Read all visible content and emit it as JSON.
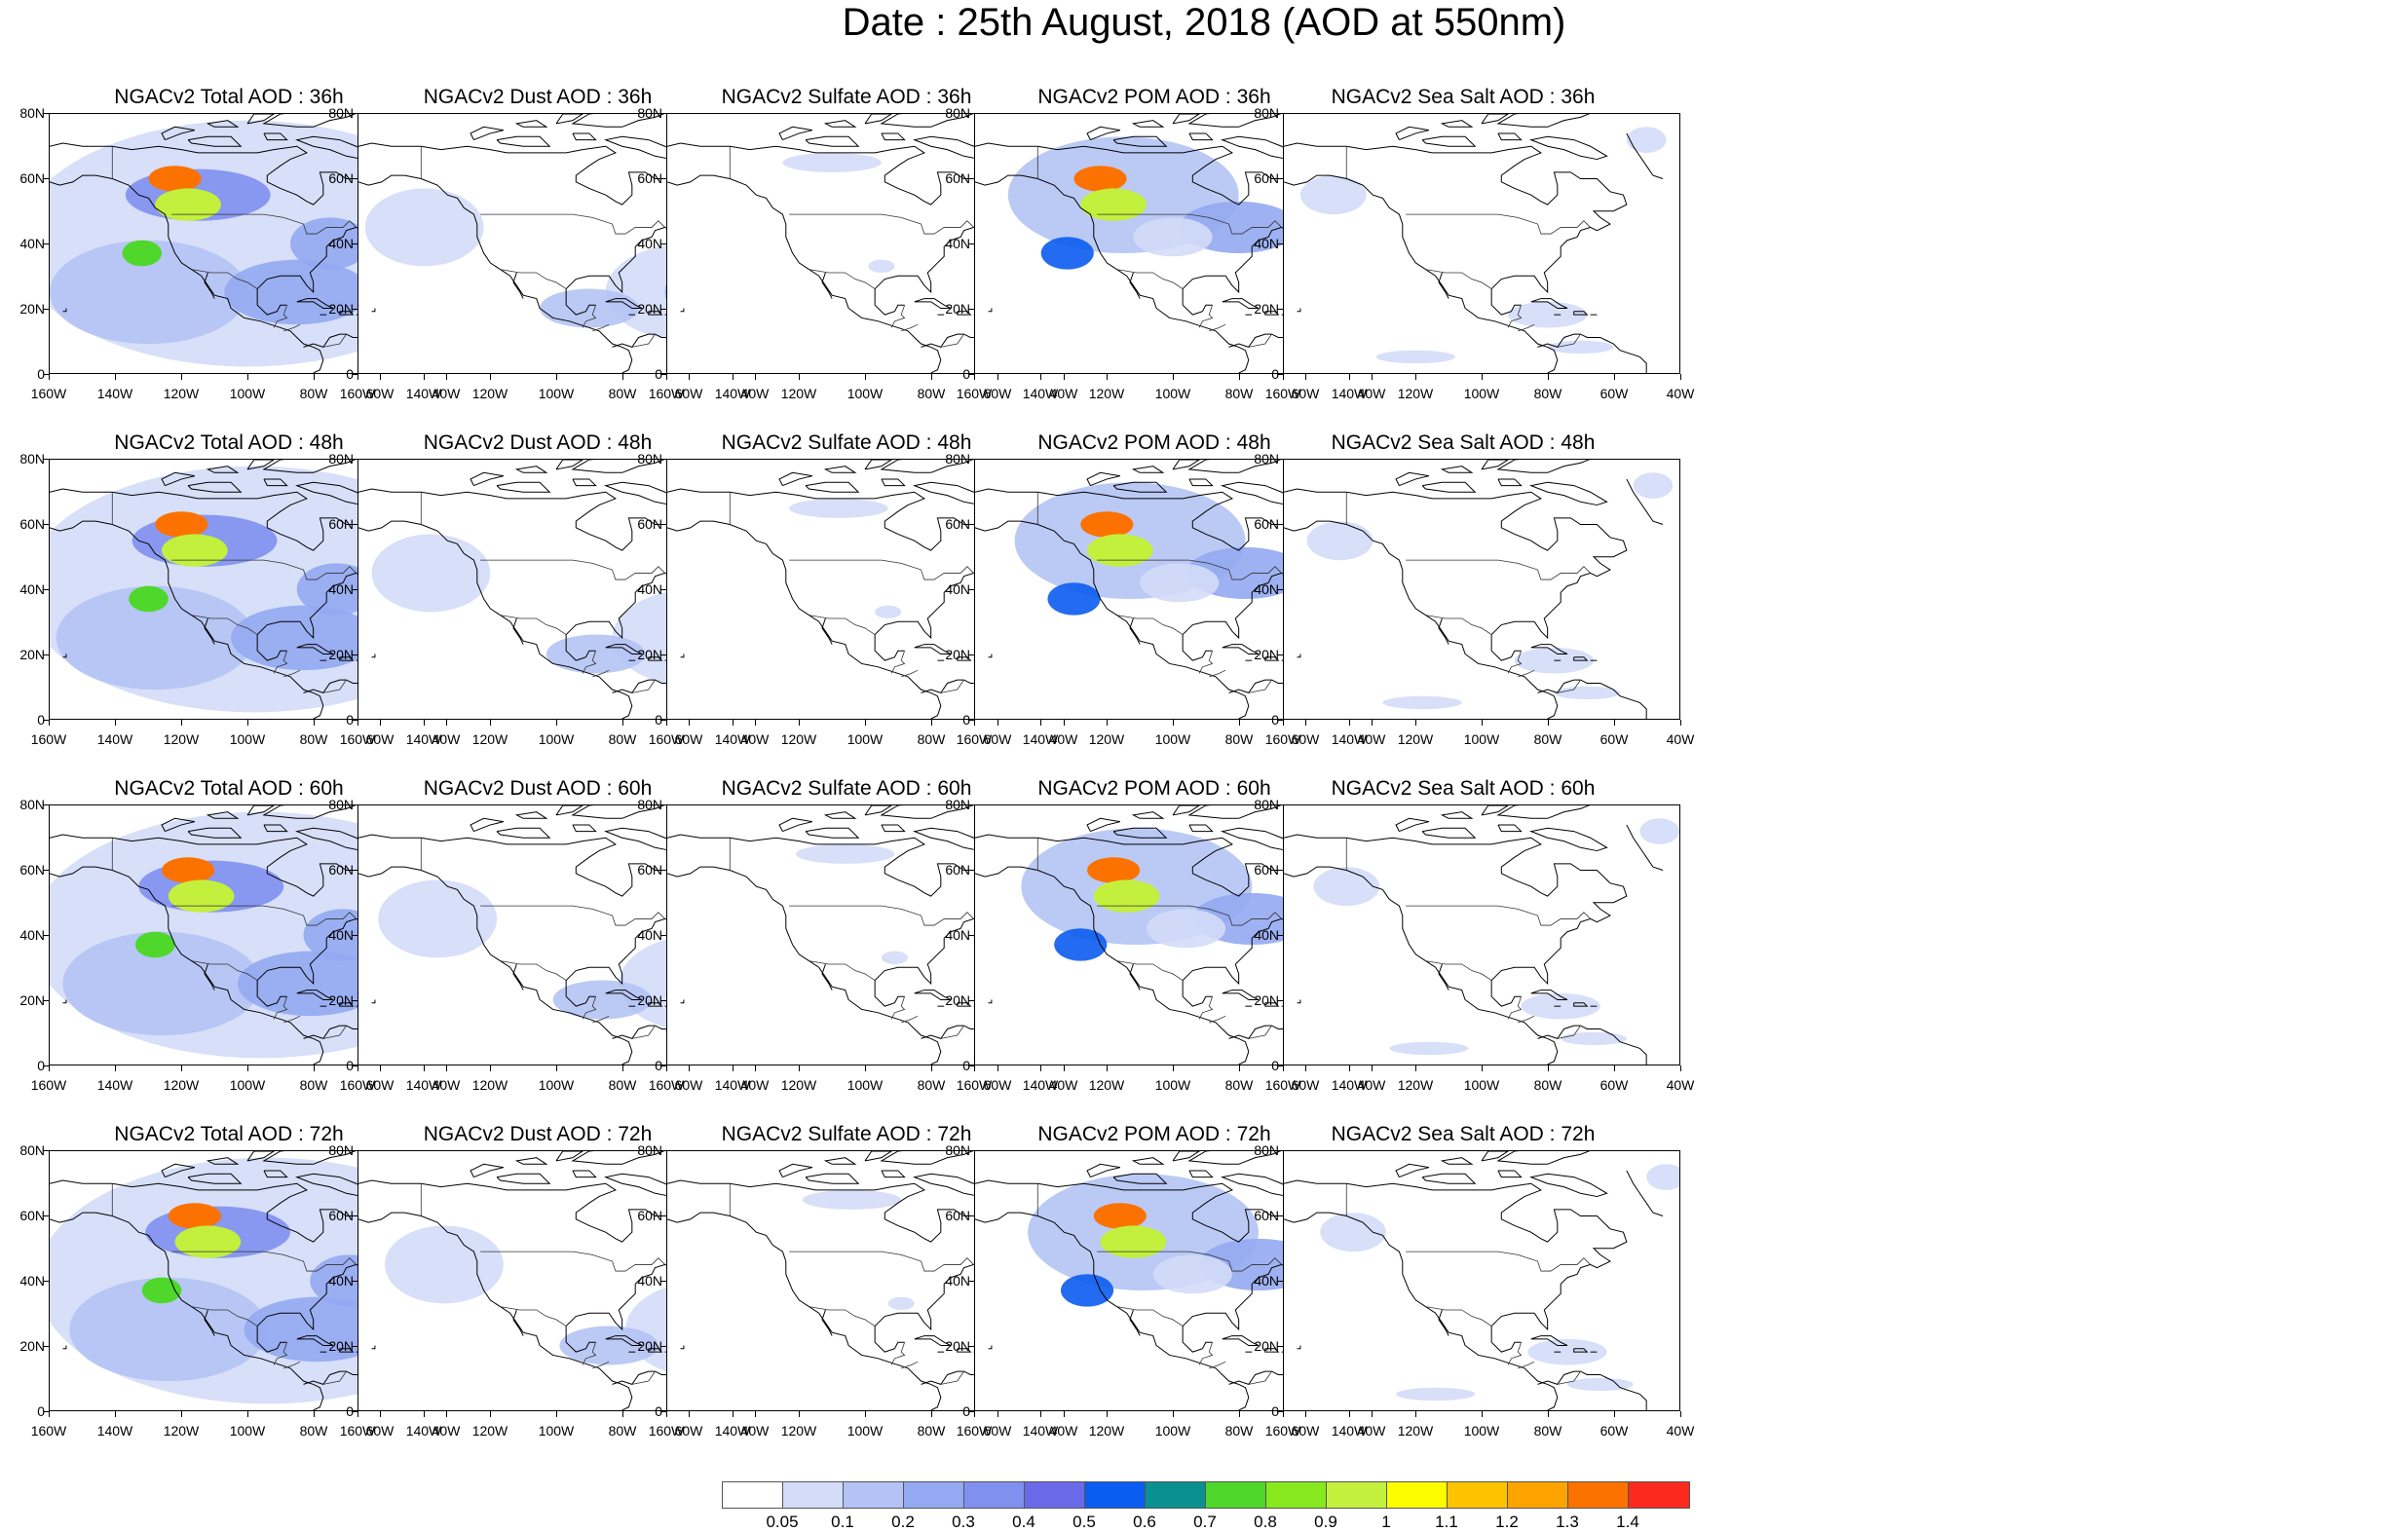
{
  "title": "Date : 25th August, 2018 (AOD at 550nm)",
  "axes": {
    "lat_labels": [
      "80N",
      "60N",
      "40N",
      "20N",
      "0"
    ],
    "lon_labels": [
      "160W",
      "140W",
      "120W",
      "100W",
      "80W",
      "60W",
      "40W"
    ]
  },
  "panels": [
    {
      "title": "NGACv2 Total AOD : 36h",
      "species": "total",
      "hour": 36
    },
    {
      "title": "NGACv2 Dust AOD : 36h",
      "species": "dust",
      "hour": 36
    },
    {
      "title": "NGACv2 Sulfate AOD : 36h",
      "species": "sulfate",
      "hour": 36
    },
    {
      "title": "NGACv2 POM AOD : 36h",
      "species": "pom",
      "hour": 36
    },
    {
      "title": "NGACv2 Sea Salt AOD : 36h",
      "species": "seasalt",
      "hour": 36
    },
    {
      "title": "NGACv2 Total AOD : 48h",
      "species": "total",
      "hour": 48
    },
    {
      "title": "NGACv2 Dust AOD : 48h",
      "species": "dust",
      "hour": 48
    },
    {
      "title": "NGACv2 Sulfate AOD : 48h",
      "species": "sulfate",
      "hour": 48
    },
    {
      "title": "NGACv2 POM AOD : 48h",
      "species": "pom",
      "hour": 48
    },
    {
      "title": "NGACv2 Sea Salt AOD : 48h",
      "species": "seasalt",
      "hour": 48
    },
    {
      "title": "NGACv2 Total AOD : 60h",
      "species": "total",
      "hour": 60
    },
    {
      "title": "NGACv2 Dust AOD : 60h",
      "species": "dust",
      "hour": 60
    },
    {
      "title": "NGACv2 Sulfate AOD : 60h",
      "species": "sulfate",
      "hour": 60
    },
    {
      "title": "NGACv2 POM AOD : 60h",
      "species": "pom",
      "hour": 60
    },
    {
      "title": "NGACv2 Sea Salt AOD : 60h",
      "species": "seasalt",
      "hour": 60
    },
    {
      "title": "NGACv2 Total AOD : 72h",
      "species": "total",
      "hour": 72
    },
    {
      "title": "NGACv2 Dust AOD : 72h",
      "species": "dust",
      "hour": 72
    },
    {
      "title": "NGACv2 Sulfate AOD : 72h",
      "species": "sulfate",
      "hour": 72
    },
    {
      "title": "NGACv2 POM AOD : 72h",
      "species": "pom",
      "hour": 72
    },
    {
      "title": "NGACv2 Sea Salt  AOD : 72h",
      "species": "seasalt",
      "hour": 72
    }
  ],
  "colorbar": {
    "labels": [
      "0.05",
      "0.1",
      "0.2",
      "0.3",
      "0.4",
      "0.5",
      "0.6",
      "0.7",
      "0.8",
      "0.9",
      "1",
      "1.1",
      "1.2",
      "1.3",
      "1.4"
    ],
    "colors": [
      "#ffffff",
      "#d3dcf8",
      "#b4c3f4",
      "#93a9f1",
      "#7f90ee",
      "#6a6ae8",
      "#0b5cf0",
      "#0a9090",
      "#4fd72b",
      "#88e81e",
      "#c3f03d",
      "#fdfd00",
      "#fdc200",
      "#fca300",
      "#fc7200",
      "#fb2a1f"
    ]
  }
}
